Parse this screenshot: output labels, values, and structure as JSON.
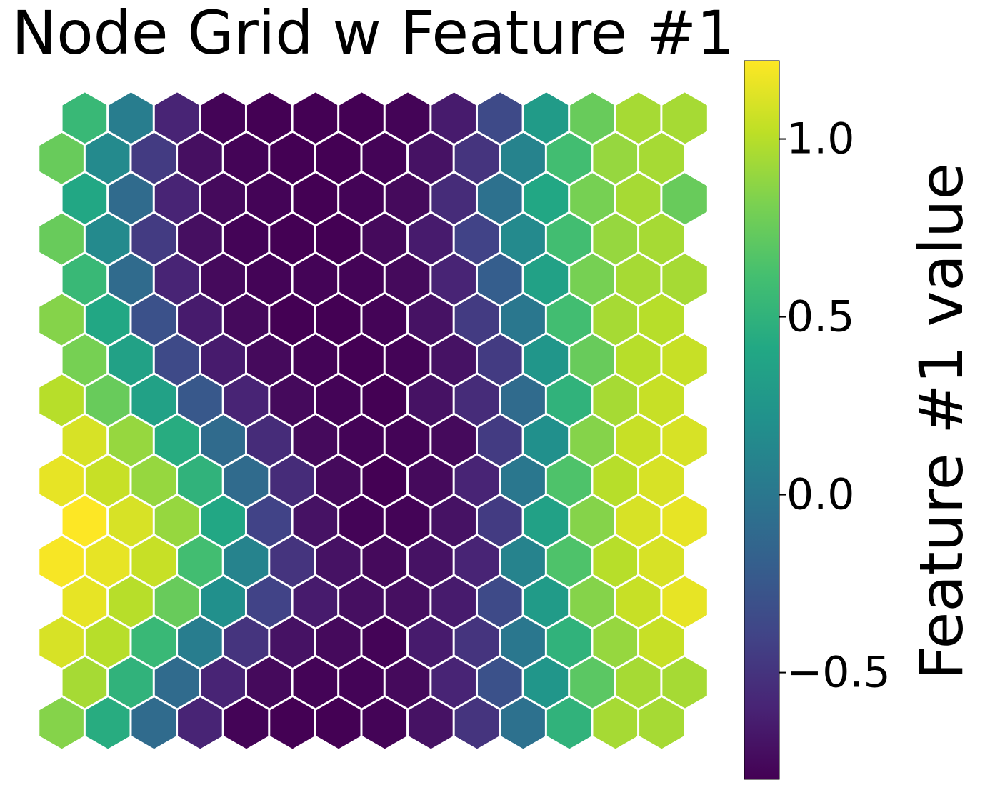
{
  "chart_data": {
    "type": "heatmap",
    "layout": "hexagonal",
    "title": "Node Grid w Feature #1",
    "colorbar": {
      "label": "Feature #1 value",
      "colormap": "viridis",
      "range": [
        -0.8,
        1.22
      ],
      "ticks": [
        -0.5,
        0.0,
        0.5,
        1.0
      ],
      "tick_labels": [
        "−0.5",
        "0.0",
        "0.5",
        "1.0"
      ]
    },
    "grid": {
      "rows": 16,
      "cols": 14,
      "row_order": "top-to-bottom",
      "even_rows_shifted_right": true
    },
    "values": [
      [
        0.55,
        0.05,
        -0.6,
        -0.78,
        -0.8,
        -0.8,
        -0.8,
        -0.78,
        -0.65,
        -0.35,
        0.3,
        0.75,
        0.95,
        0.95
      ],
      [
        0.75,
        0.15,
        -0.45,
        -0.72,
        -0.78,
        -0.8,
        -0.8,
        -0.78,
        -0.7,
        -0.5,
        0.1,
        0.6,
        0.9,
        0.95
      ],
      [
        0.4,
        -0.1,
        -0.6,
        -0.75,
        -0.78,
        -0.8,
        -0.78,
        -0.75,
        -0.55,
        -0.05,
        0.4,
        0.8,
        0.95,
        0.75
      ],
      [
        0.75,
        0.15,
        -0.45,
        -0.72,
        -0.78,
        -0.8,
        -0.8,
        -0.75,
        -0.65,
        -0.4,
        0.15,
        0.6,
        0.9,
        0.95
      ],
      [
        0.55,
        -0.1,
        -0.6,
        -0.75,
        -0.78,
        -0.78,
        -0.78,
        -0.75,
        -0.6,
        -0.2,
        0.35,
        0.8,
        0.95,
        0.95
      ],
      [
        0.85,
        0.4,
        -0.3,
        -0.65,
        -0.75,
        -0.8,
        -0.8,
        -0.78,
        -0.7,
        -0.45,
        0.0,
        0.6,
        0.95,
        1.0
      ],
      [
        0.8,
        0.35,
        -0.35,
        -0.65,
        -0.75,
        -0.78,
        -0.8,
        -0.78,
        -0.7,
        -0.45,
        0.25,
        0.75,
        1.0,
        1.05
      ],
      [
        1.0,
        0.75,
        0.35,
        -0.25,
        -0.6,
        -0.75,
        -0.78,
        -0.8,
        -0.7,
        -0.55,
        -0.1,
        0.5,
        0.95,
        1.05
      ],
      [
        1.1,
        0.9,
        0.45,
        -0.1,
        -0.55,
        -0.75,
        -0.78,
        -0.78,
        -0.75,
        -0.45,
        0.2,
        0.85,
        1.05,
        1.1
      ],
      [
        1.15,
        1.05,
        0.9,
        0.5,
        -0.1,
        -0.55,
        -0.75,
        -0.8,
        -0.75,
        -0.6,
        0.0,
        0.65,
        1.0,
        1.1
      ],
      [
        1.22,
        1.1,
        0.9,
        0.4,
        -0.4,
        -0.7,
        -0.78,
        -0.78,
        -0.7,
        -0.45,
        0.35,
        0.85,
        1.1,
        1.15
      ],
      [
        1.2,
        1.15,
        1.05,
        0.6,
        0.1,
        -0.5,
        -0.7,
        -0.75,
        -0.7,
        -0.6,
        0.1,
        0.65,
        1.0,
        1.1
      ],
      [
        1.15,
        1.0,
        0.75,
        0.2,
        -0.4,
        -0.65,
        -0.72,
        -0.72,
        -0.65,
        -0.35,
        0.3,
        0.85,
        1.05,
        1.15
      ],
      [
        1.1,
        1.0,
        0.55,
        0.05,
        -0.5,
        -0.7,
        -0.75,
        -0.78,
        -0.65,
        -0.5,
        0.0,
        0.5,
        0.9,
        1.05
      ],
      [
        0.95,
        0.5,
        -0.1,
        -0.6,
        -0.75,
        -0.78,
        -0.78,
        -0.75,
        -0.6,
        -0.3,
        0.25,
        0.7,
        0.95,
        0.95
      ],
      [
        0.85,
        0.45,
        -0.1,
        -0.6,
        -0.78,
        -0.8,
        -0.8,
        -0.78,
        -0.7,
        -0.5,
        -0.05,
        0.5,
        0.95,
        0.95
      ]
    ]
  }
}
